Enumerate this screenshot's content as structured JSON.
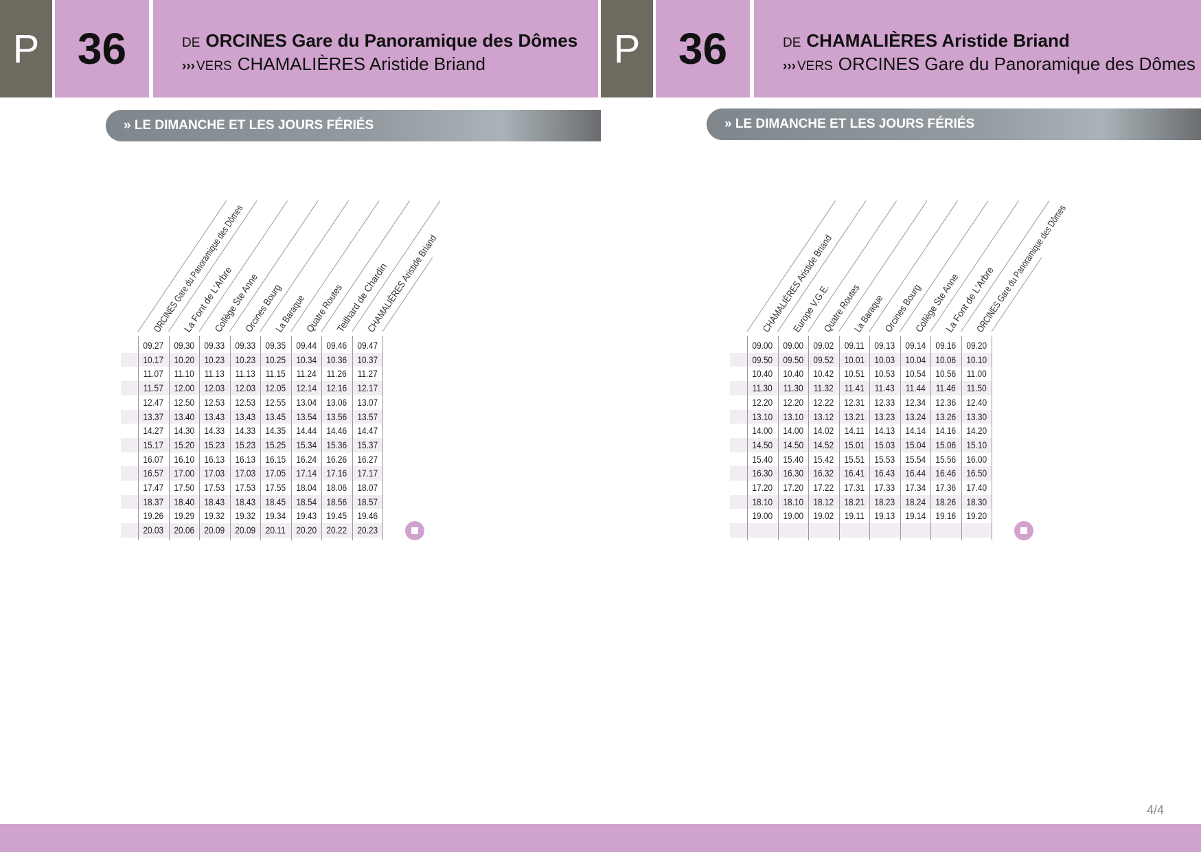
{
  "colors": {
    "accent": "#cfa3cd",
    "dark": "#6e6a60",
    "banner": "#959ca1"
  },
  "panels": [
    {
      "mode_letter": "P",
      "line_number": "36",
      "de_label": "DE",
      "from": "ORCINES Gare du Panoramique des Dômes",
      "vers_icon": "triple-chevron-icon",
      "vers_prefix": "›››",
      "vers_label": "VERS",
      "to": "CHAMALIÈRES Aristide Briand",
      "section": "» LE DIMANCHE ET LES JOURS FÉRIÉS",
      "stops": [
        "ORCINES Gare du Panoramique des Dômes",
        "La Font de L'Arbre",
        "Collège Ste Anne",
        "Orcines Bourg",
        "La Baraque",
        "Quatre Routes",
        "Teilhard de Chardin",
        "CHAMALIÈRES Aristide Briand"
      ],
      "rows": [
        [
          "09.27",
          "09.30",
          "09.33",
          "09.33",
          "09.35",
          "09.44",
          "09.46",
          "09.47"
        ],
        [
          "10.17",
          "10.20",
          "10.23",
          "10.23",
          "10.25",
          "10.34",
          "10.36",
          "10.37"
        ],
        [
          "11.07",
          "11.10",
          "11.13",
          "11.13",
          "11.15",
          "11.24",
          "11.26",
          "11.27"
        ],
        [
          "11.57",
          "12.00",
          "12.03",
          "12.03",
          "12.05",
          "12.14",
          "12.16",
          "12.17"
        ],
        [
          "12.47",
          "12.50",
          "12.53",
          "12.53",
          "12.55",
          "13.04",
          "13.06",
          "13.07"
        ],
        [
          "13.37",
          "13.40",
          "13.43",
          "13.43",
          "13.45",
          "13.54",
          "13.56",
          "13.57"
        ],
        [
          "14.27",
          "14.30",
          "14.33",
          "14.33",
          "14.35",
          "14.44",
          "14.46",
          "14.47"
        ],
        [
          "15.17",
          "15.20",
          "15.23",
          "15.23",
          "15.25",
          "15.34",
          "15.36",
          "15.37"
        ],
        [
          "16.07",
          "16.10",
          "16.13",
          "16.13",
          "16.15",
          "16.24",
          "16.26",
          "16.27"
        ],
        [
          "16.57",
          "17.00",
          "17.03",
          "17.03",
          "17.05",
          "17.14",
          "17.16",
          "17.17"
        ],
        [
          "17.47",
          "17.50",
          "17.53",
          "17.53",
          "17.55",
          "18.04",
          "18.06",
          "18.07"
        ],
        [
          "18.37",
          "18.40",
          "18.43",
          "18.43",
          "18.45",
          "18.54",
          "18.56",
          "18.57"
        ],
        [
          "19.26",
          "19.29",
          "19.32",
          "19.32",
          "19.34",
          "19.43",
          "19.45",
          "19.46"
        ],
        [
          "20.03",
          "20.06",
          "20.09",
          "20.09",
          "20.11",
          "20.20",
          "20.22",
          "20.23"
        ]
      ],
      "end_icon": "stop-circle-icon"
    },
    {
      "mode_letter": "P",
      "line_number": "36",
      "de_label": "DE",
      "from": "CHAMALIÈRES Aristide Briand",
      "vers_icon": "triple-chevron-icon",
      "vers_prefix": "›››",
      "vers_label": "VERS",
      "to": "ORCINES Gare du Panoramique des Dômes",
      "section": "» LE DIMANCHE ET LES JOURS FÉRIÉS",
      "stops": [
        "CHAMALIÈRES Aristide Briand",
        "Europe V.G.E.",
        "Quatre Routes",
        "La Baraque",
        "Orcines Bourg",
        "Collège Ste Anne",
        "La Font de L'Arbre",
        "ORCINES Gare du Panoramique des Dômes"
      ],
      "rows": [
        [
          "09.00",
          "09.00",
          "09.02",
          "09.11",
          "09.13",
          "09.14",
          "09.16",
          "09.20"
        ],
        [
          "09.50",
          "09.50",
          "09.52",
          "10.01",
          "10.03",
          "10.04",
          "10.06",
          "10.10"
        ],
        [
          "10.40",
          "10.40",
          "10.42",
          "10.51",
          "10.53",
          "10.54",
          "10.56",
          "11.00"
        ],
        [
          "11.30",
          "11.30",
          "11.32",
          "11.41",
          "11.43",
          "11.44",
          "11.46",
          "11.50"
        ],
        [
          "12.20",
          "12.20",
          "12.22",
          "12.31",
          "12.33",
          "12.34",
          "12.36",
          "12.40"
        ],
        [
          "13.10",
          "13.10",
          "13.12",
          "13.21",
          "13.23",
          "13.24",
          "13.26",
          "13.30"
        ],
        [
          "14.00",
          "14.00",
          "14.02",
          "14.11",
          "14.13",
          "14.14",
          "14.16",
          "14.20"
        ],
        [
          "14.50",
          "14.50",
          "14.52",
          "15.01",
          "15.03",
          "15.04",
          "15.06",
          "15.10"
        ],
        [
          "15.40",
          "15.40",
          "15.42",
          "15.51",
          "15.53",
          "15.54",
          "15.56",
          "16.00"
        ],
        [
          "16.30",
          "16.30",
          "16.32",
          "16.41",
          "16.43",
          "16.44",
          "16.46",
          "16.50"
        ],
        [
          "17.20",
          "17.20",
          "17.22",
          "17.31",
          "17.33",
          "17.34",
          "17.36",
          "17.40"
        ],
        [
          "18.10",
          "18.10",
          "18.12",
          "18.21",
          "18.23",
          "18.24",
          "18.26",
          "18.30"
        ],
        [
          "19.00",
          "19.00",
          "19.02",
          "19.11",
          "19.13",
          "19.14",
          "19.16",
          "19.20"
        ],
        [
          "",
          "",
          "",
          "",
          "",
          "",
          "",
          ""
        ]
      ],
      "end_icon": "stop-circle-icon"
    }
  ],
  "page_number": "4/4"
}
